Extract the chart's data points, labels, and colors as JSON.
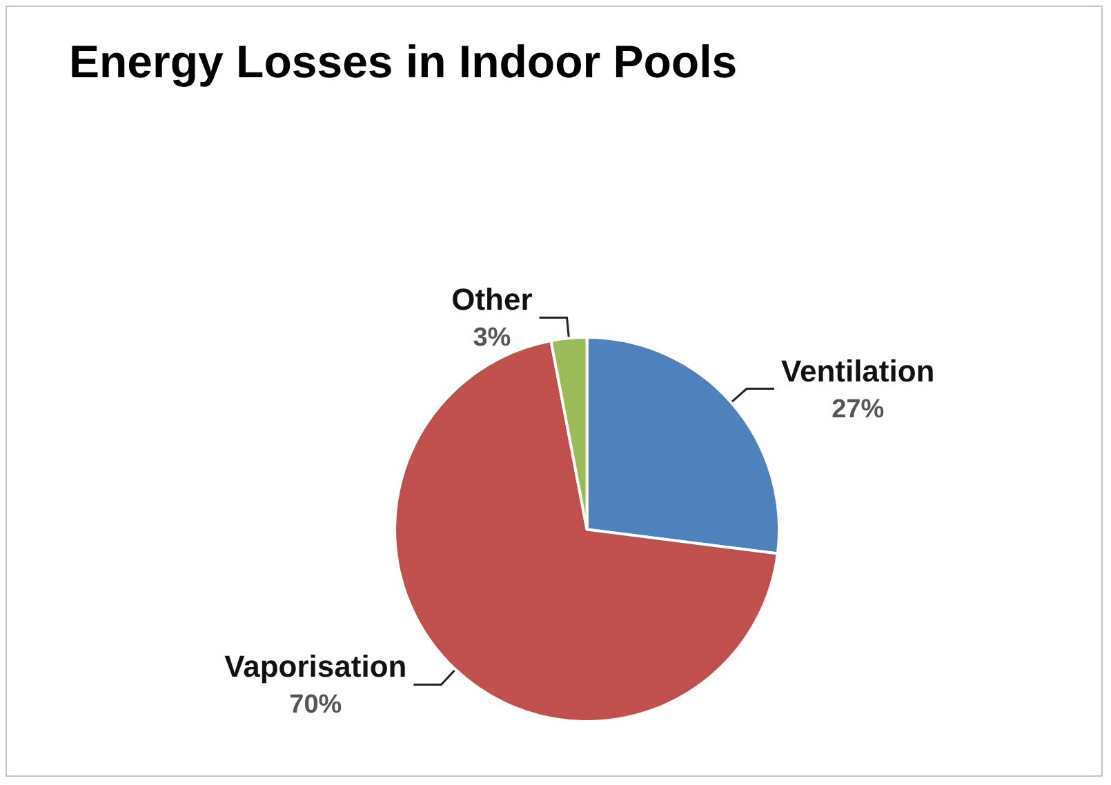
{
  "chart_data": {
    "type": "pie",
    "title": "Energy Losses in Indoor Pools",
    "categories": [
      "Ventilation",
      "Vaporisation",
      "Other"
    ],
    "values": [
      27,
      70,
      3
    ],
    "colors": [
      "#4f81bd",
      "#c0504d",
      "#9bbb59"
    ],
    "value_labels": [
      "27%",
      "70%",
      "3%"
    ],
    "legend": false
  }
}
